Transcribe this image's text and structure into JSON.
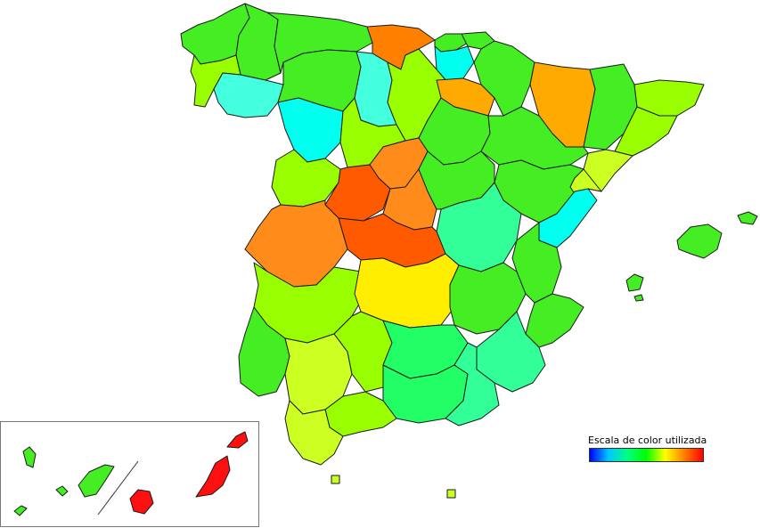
{
  "legend": {
    "title": "Escala de color utilizada",
    "gradient": [
      "#0000ff",
      "#00c8ff",
      "#00ff80",
      "#00ff00",
      "#ffff00",
      "#ff8000",
      "#ff0000"
    ]
  },
  "colors": {
    "red": "#ff1010",
    "red_orange": "#ff5a00",
    "orange": "#ff8c1a",
    "light_orange": "#ffaa00",
    "yellow": "#ffee00",
    "yellow_green": "#ccff22",
    "lime": "#99ff00",
    "green": "#44ee22",
    "spring_green": "#22ff66",
    "mint": "#33ff99",
    "cyan": "#00ffee",
    "light_cyan": "#44ffdd"
  }
}
